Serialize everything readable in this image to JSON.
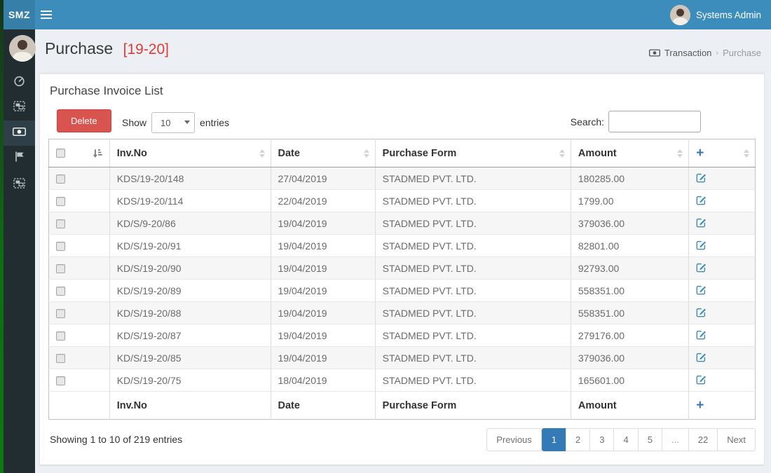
{
  "navbar": {
    "logo": "SMZ",
    "user_name": "Systems Admin"
  },
  "sidebar": {
    "items": [
      {
        "name": "dashboard",
        "icon": "gauge-icon",
        "active": false
      },
      {
        "name": "object-group-1",
        "icon": "object-group-icon",
        "active": false
      },
      {
        "name": "transaction",
        "icon": "money-icon",
        "active": true
      },
      {
        "name": "reports-flag",
        "icon": "flag-icon",
        "active": false
      },
      {
        "name": "object-group-2",
        "icon": "object-group-icon",
        "active": false
      }
    ]
  },
  "page": {
    "title": "Purchase",
    "title_badge": "[19-20]",
    "breadcrumb": {
      "section": "Transaction",
      "separator": "›",
      "current": "Purchase"
    }
  },
  "panel": {
    "title": "Purchase Invoice List",
    "delete_label": "Delete",
    "show_prefix": "Show",
    "show_value": "10",
    "show_suffix": "entries",
    "search_label": "Search:",
    "search_value": "",
    "table": {
      "headers": {
        "inv_no": "Inv.No",
        "date": "Date",
        "purchase_form": "Purchase Form",
        "amount": "Amount",
        "add": "+"
      },
      "rows": [
        {
          "inv_no": "KDS/19-20/148",
          "date": "27/04/2019",
          "purchase_form": "STADMED PVT. LTD.",
          "amount": "180285.00"
        },
        {
          "inv_no": "KDS/19-20/114",
          "date": "22/04/2019",
          "purchase_form": "STADMED PVT. LTD.",
          "amount": "1799.00"
        },
        {
          "inv_no": "KD/S/9-20/86",
          "date": "19/04/2019",
          "purchase_form": "STADMED PVT. LTD.",
          "amount": "379036.00"
        },
        {
          "inv_no": "KD/S/19-20/91",
          "date": "19/04/2019",
          "purchase_form": "STADMED PVT. LTD.",
          "amount": "82801.00"
        },
        {
          "inv_no": "KD/S/19-20/90",
          "date": "19/04/2019",
          "purchase_form": "STADMED PVT. LTD.",
          "amount": "92793.00"
        },
        {
          "inv_no": "KD/S/19-20/89",
          "date": "19/04/2019",
          "purchase_form": "STADMED PVT. LTD.",
          "amount": "558351.00"
        },
        {
          "inv_no": "KD/S/19-20/88",
          "date": "19/04/2019",
          "purchase_form": "STADMED PVT. LTD.",
          "amount": "558351.00"
        },
        {
          "inv_no": "KD/S/19-20/87",
          "date": "19/04/2019",
          "purchase_form": "STADMED PVT. LTD.",
          "amount": "279176.00"
        },
        {
          "inv_no": "KD/S/19-20/85",
          "date": "19/04/2019",
          "purchase_form": "STADMED PVT. LTD.",
          "amount": "379036.00"
        },
        {
          "inv_no": "KD/S/19-20/75",
          "date": "18/04/2019",
          "purchase_form": "STADMED PVT. LTD.",
          "amount": "165601.00"
        }
      ],
      "footer": {
        "inv_no": "Inv.No",
        "date": "Date",
        "purchase_form": "Purchase Form",
        "amount": "Amount",
        "add": "+"
      }
    },
    "info": "Showing 1 to 10 of 219 entries",
    "pagination": {
      "previous": "Previous",
      "pages": [
        "1",
        "2",
        "3",
        "4",
        "5",
        "...",
        "22"
      ],
      "active": "1",
      "next": "Next"
    }
  },
  "colors": {
    "navbar": "#3c8dbc",
    "logo_bg": "#367fa9",
    "sidebar_bg": "#222d32",
    "content_bg": "#ecf0f5",
    "title_badge_red": "#e23b36",
    "delete_red": "#d9534f",
    "pagination_active_blue": "#337ab7",
    "edit_icon_blue": "#3c8dbc"
  }
}
